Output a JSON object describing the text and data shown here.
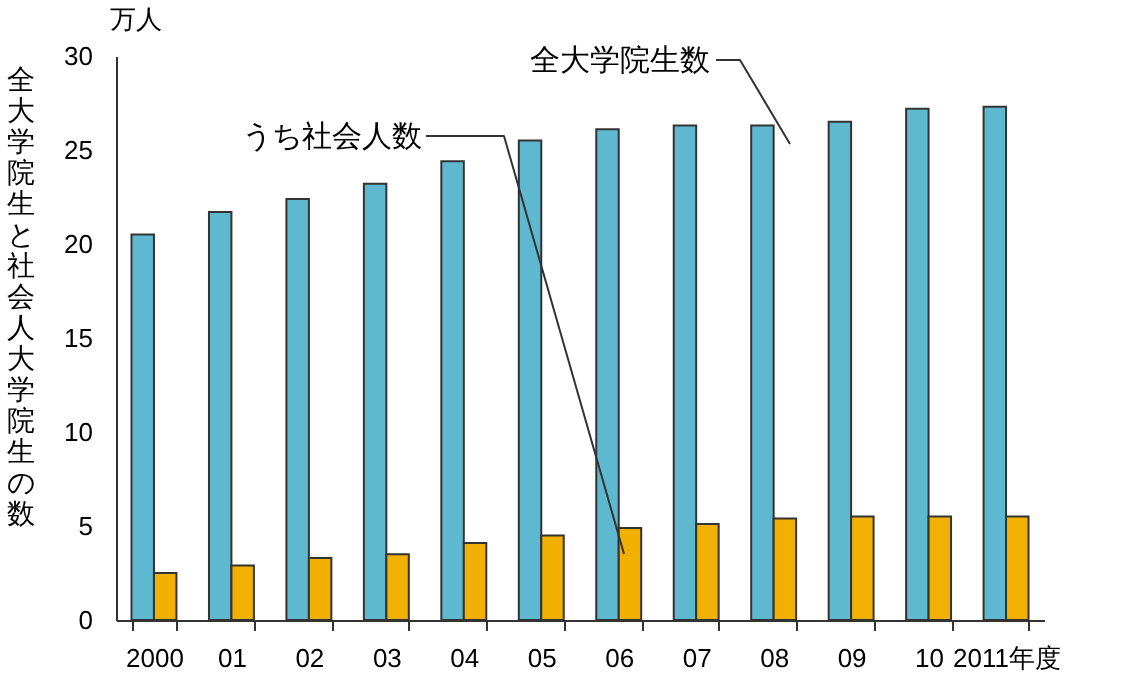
{
  "chart_data": {
    "type": "bar",
    "ylabel": "全大学院生と社会人大学院生の数",
    "annotations": [
      "万人"
    ],
    "categories": [
      "2000",
      "01",
      "02",
      "03",
      "04",
      "05",
      "06",
      "07",
      "08",
      "09",
      "10",
      "2011年度"
    ],
    "series": [
      {
        "name": "全大学院生数",
        "color": "#5eb8cf",
        "values": [
          20.5,
          21.7,
          22.4,
          23.2,
          24.4,
          25.5,
          26.1,
          26.3,
          26.3,
          26.5,
          27.2,
          27.3
        ]
      },
      {
        "name": "うち社会人数",
        "color": "#f2b000",
        "values": [
          2.5,
          2.9,
          3.3,
          3.5,
          4.1,
          4.5,
          4.9,
          5.1,
          5.4,
          5.5,
          5.5,
          5.5
        ]
      }
    ],
    "ylim": [
      0,
      30
    ],
    "yticks": [
      0,
      5,
      10,
      15,
      20,
      25,
      30
    ],
    "grid": false,
    "legend": false
  }
}
